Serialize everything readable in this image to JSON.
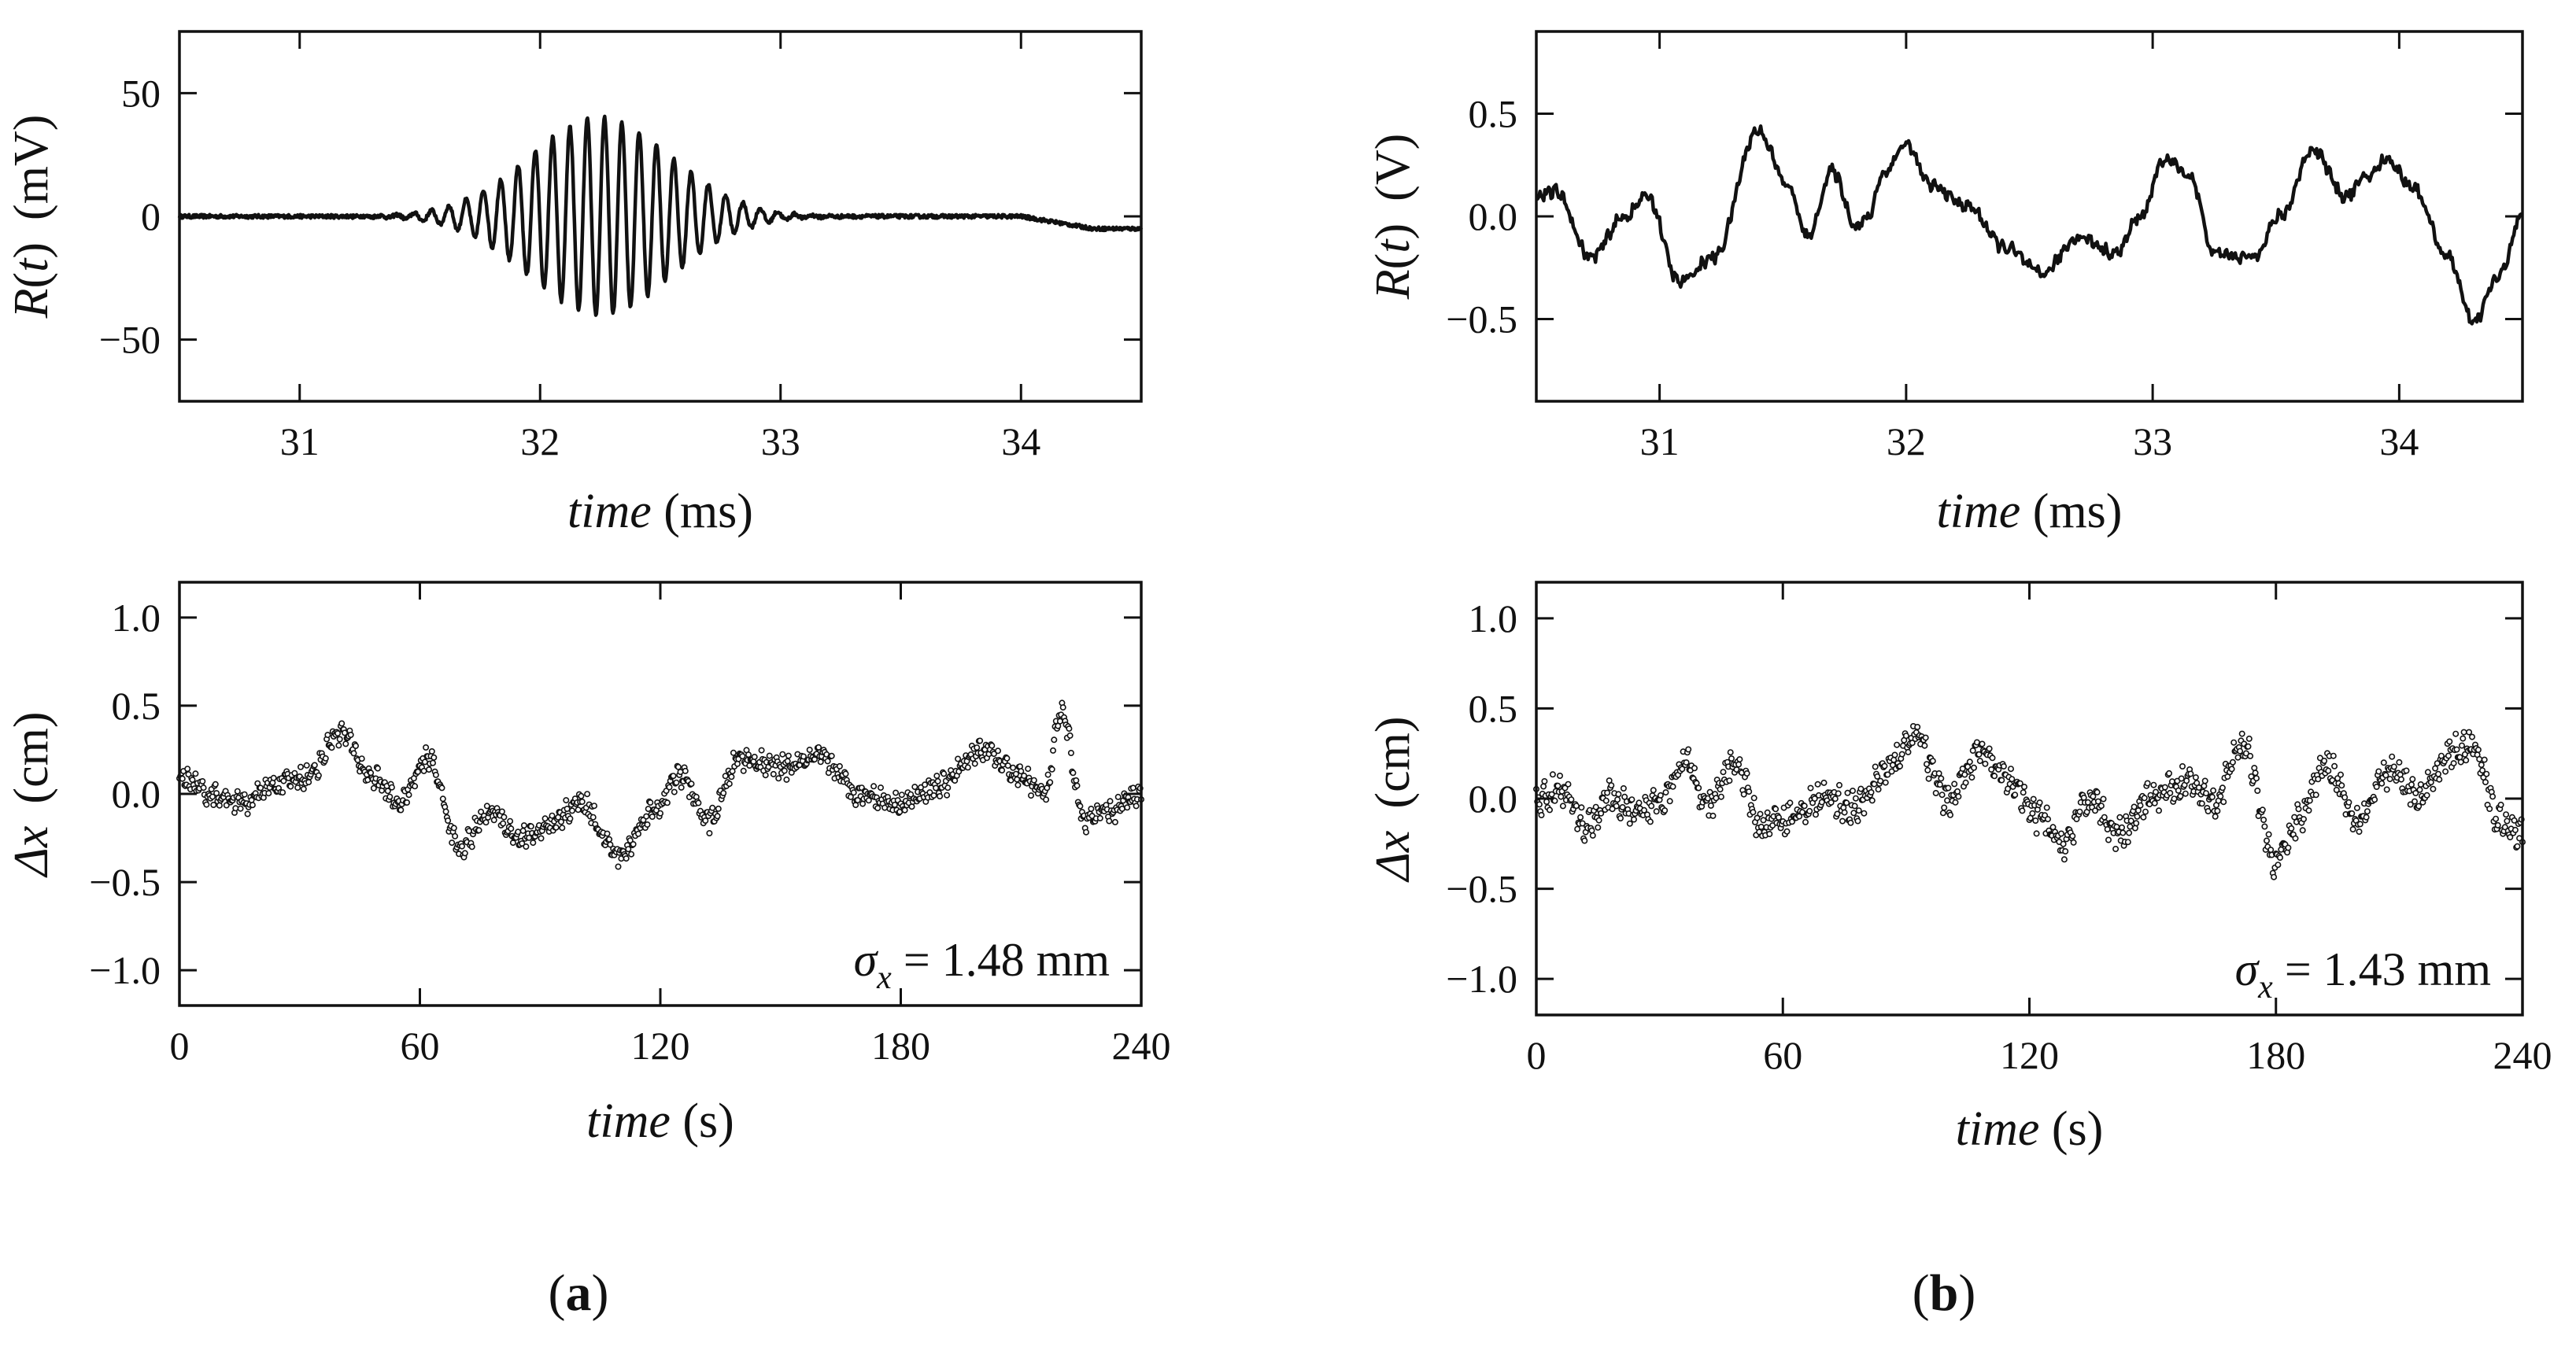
{
  "panel_labels": [
    {
      "open": "(",
      "letter": "a",
      "close": ")"
    },
    {
      "open": "(",
      "letter": "b",
      "close": ")"
    }
  ],
  "colors": {
    "trace": "#111111",
    "axis": "#111111",
    "background": "#ffffff"
  },
  "chart_data": [
    {
      "id": "a_top",
      "type": "line",
      "x_range": [
        30.5,
        34.5
      ],
      "y_range": [
        -75,
        75
      ],
      "x_ticks": [
        31,
        32,
        33,
        34
      ],
      "y_ticks": [
        -50,
        0,
        50
      ],
      "x_tick_labels": [
        "31",
        "32",
        "33",
        "34"
      ],
      "y_tick_labels": [
        "−50",
        "0",
        "50"
      ],
      "xlabel": {
        "italic": "time",
        "unit": " (ms)"
      },
      "ylabel": {
        "pre": "R",
        "open": "(",
        "italic": "t",
        "close": ")",
        "unit": "(mV)"
      },
      "annotation": null,
      "signal": {
        "kind": "wavepacket",
        "center": 32.25,
        "width": 0.42,
        "amplitude": 40,
        "period": 0.072,
        "drift_start": 34.0,
        "drift_end": -5,
        "noise": 1.5,
        "samples": 1400
      }
    },
    {
      "id": "b_top",
      "type": "line",
      "x_range": [
        30.5,
        34.5
      ],
      "y_range": [
        -0.9,
        0.9
      ],
      "x_ticks": [
        31,
        32,
        33,
        34
      ],
      "y_ticks": [
        -0.5,
        0.0,
        0.5
      ],
      "x_tick_labels": [
        "31",
        "32",
        "33",
        "34"
      ],
      "y_tick_labels": [
        "−0.5",
        "0.0",
        "0.5"
      ],
      "xlabel": {
        "italic": "time",
        "unit": " (ms)"
      },
      "ylabel": {
        "pre": "R",
        "open": "(",
        "italic": "t",
        "close": ")",
        "unit": "(V)"
      },
      "annotation": null,
      "signal": {
        "kind": "keypoints",
        "samples": 800,
        "wiggle": 0.025,
        "x": [
          30.5,
          30.58,
          30.72,
          30.86,
          30.95,
          31.08,
          31.22,
          31.4,
          31.52,
          31.6,
          31.7,
          31.8,
          31.85,
          31.9,
          32.0,
          32.1,
          32.25,
          32.4,
          32.55,
          32.7,
          32.85,
          32.95,
          33.05,
          33.15,
          33.25,
          33.4,
          33.52,
          33.65,
          33.78,
          33.88,
          33.95,
          34.05,
          34.2,
          34.3,
          34.4,
          34.5
        ],
        "y": [
          0.1,
          0.12,
          -0.2,
          0.0,
          0.1,
          -0.32,
          -0.2,
          0.42,
          0.15,
          -0.1,
          0.22,
          -0.05,
          0.0,
          0.2,
          0.35,
          0.15,
          0.05,
          -0.15,
          -0.28,
          -0.1,
          -0.18,
          0.0,
          0.28,
          0.2,
          -0.18,
          -0.2,
          0.0,
          0.33,
          0.1,
          0.2,
          0.28,
          0.15,
          -0.2,
          -0.52,
          -0.3,
          0.0
        ]
      }
    },
    {
      "id": "a_bottom",
      "type": "scatter",
      "x_range": [
        0,
        240
      ],
      "y_range": [
        -1.2,
        1.2
      ],
      "x_ticks": [
        0,
        60,
        120,
        180,
        240
      ],
      "y_ticks": [
        -1.0,
        -0.5,
        0.0,
        0.5,
        1.0
      ],
      "x_tick_labels": [
        "0",
        "60",
        "120",
        "180",
        "240"
      ],
      "y_tick_labels": [
        "−1.0",
        "−0.5",
        "0.0",
        "0.5",
        "1.0"
      ],
      "xlabel": {
        "italic": "time",
        "unit": " (s)"
      },
      "ylabel": {
        "italic": "Δx",
        "unit": "(cm)"
      },
      "annotation": {
        "symbol": "σ",
        "sub": "x",
        "text": " = 1.48 mm"
      },
      "signal": {
        "kind": "keypoints",
        "samples": 960,
        "wiggle": 0.05,
        "x": [
          0,
          8,
          16,
          24,
          32,
          40,
          48,
          55,
          62,
          70,
          78,
          85,
          92,
          100,
          110,
          118,
          125,
          132,
          140,
          150,
          160,
          170,
          180,
          190,
          200,
          210,
          216,
          220,
          226,
          232,
          240
        ],
        "y": [
          0.1,
          0.0,
          -0.05,
          0.05,
          0.1,
          0.35,
          0.1,
          -0.05,
          0.2,
          -0.3,
          -0.1,
          -0.25,
          -0.2,
          -0.05,
          -0.35,
          -0.1,
          0.1,
          -0.15,
          0.2,
          0.15,
          0.2,
          0.0,
          -0.05,
          0.05,
          0.25,
          0.1,
          0.0,
          0.45,
          -0.15,
          -0.1,
          0.0
        ]
      }
    },
    {
      "id": "b_bottom",
      "type": "scatter",
      "x_range": [
        0,
        240
      ],
      "y_range": [
        -1.2,
        1.2
      ],
      "x_ticks": [
        0,
        60,
        120,
        180,
        240
      ],
      "y_ticks": [
        -1.0,
        -0.5,
        0.0,
        0.5,
        1.0
      ],
      "x_tick_labels": [
        "0",
        "60",
        "120",
        "180",
        "240"
      ],
      "y_tick_labels": [
        "−1.0",
        "−0.5",
        "0.0",
        "0.5",
        "1.0"
      ],
      "xlabel": {
        "italic": "time",
        "unit": " (s)"
      },
      "ylabel": {
        "italic": "Δx",
        "unit": "(cm)"
      },
      "annotation": {
        "symbol": "σ",
        "sub": "x",
        "text": " = 1.43 mm"
      },
      "signal": {
        "kind": "keypoints",
        "samples": 960,
        "wiggle": 0.07,
        "x": [
          0,
          6,
          12,
          18,
          25,
          30,
          36,
          42,
          48,
          55,
          62,
          70,
          78,
          85,
          92,
          100,
          108,
          115,
          122,
          128,
          135,
          142,
          150,
          158,
          165,
          172,
          180,
          186,
          192,
          200,
          208,
          215,
          222,
          228,
          234,
          240
        ],
        "y": [
          0.0,
          0.05,
          -0.15,
          0.0,
          -0.1,
          0.0,
          0.2,
          -0.05,
          0.2,
          -0.15,
          -0.1,
          0.0,
          -0.05,
          0.15,
          0.35,
          0.0,
          0.25,
          0.1,
          -0.1,
          -0.25,
          0.0,
          -0.2,
          0.0,
          0.1,
          0.0,
          0.3,
          -0.35,
          -0.1,
          0.2,
          -0.1,
          0.15,
          0.0,
          0.25,
          0.3,
          -0.1,
          -0.2
        ]
      }
    }
  ]
}
